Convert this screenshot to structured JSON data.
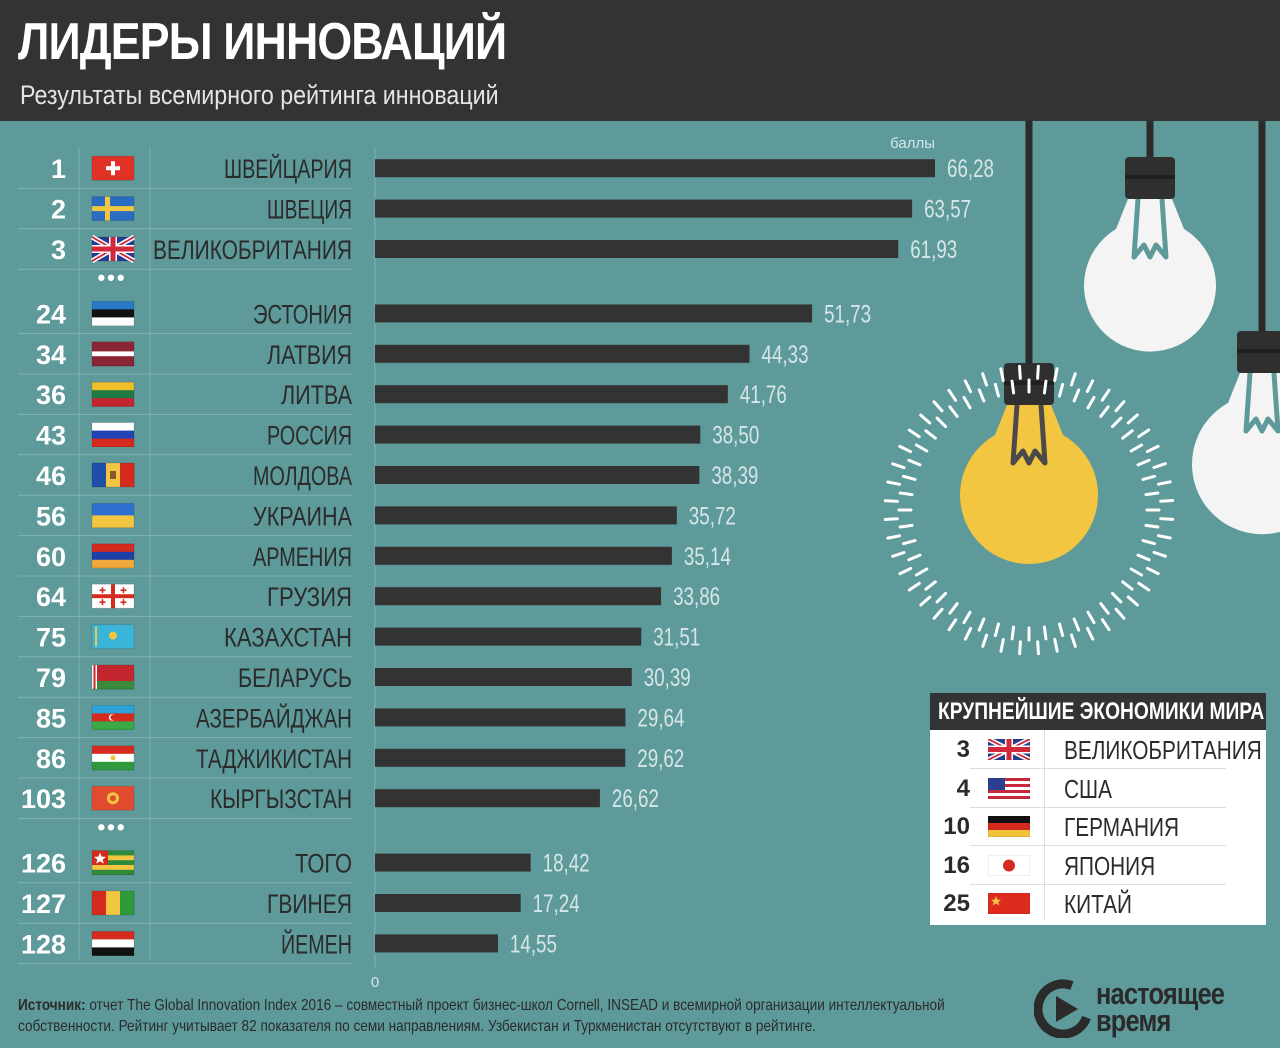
{
  "header": {
    "title": "ЛИДЕРЫ ИННОВАЦИЙ",
    "subtitle": "Результаты всемирного рейтинга инноваций"
  },
  "colors": {
    "background": "#5e9a9a",
    "header": "#333333",
    "bar": "#333333",
    "value_text": "#d6e6e6",
    "bulb_lit": "#f2c641",
    "bulb_off": "#f4f4f4"
  },
  "chart_data": {
    "type": "bar",
    "orientation": "horizontal",
    "unit_label": "баллы",
    "axis_zero_label": "0",
    "xlim": [
      0,
      66.28
    ],
    "gap_marker": "•••",
    "rows": [
      {
        "rank": "1",
        "country": "ШВЕЙЦАРИЯ",
        "value": 66.28,
        "label": "66,28",
        "flag": "flag-switzerland"
      },
      {
        "rank": "2",
        "country": "ШВЕЦИЯ",
        "value": 63.57,
        "label": "63,57",
        "flag": "flag-sweden"
      },
      {
        "rank": "3",
        "country": "ВЕЛИКОБРИТАНИЯ",
        "value": 61.93,
        "label": "61,93",
        "flag": "flag-uk"
      },
      {
        "gap": true
      },
      {
        "rank": "24",
        "country": "ЭСТОНИЯ",
        "value": 51.73,
        "label": "51,73",
        "flag": "flag-estonia"
      },
      {
        "rank": "34",
        "country": "ЛАТВИЯ",
        "value": 44.33,
        "label": "44,33",
        "flag": "flag-latvia"
      },
      {
        "rank": "36",
        "country": "ЛИТВА",
        "value": 41.76,
        "label": "41,76",
        "flag": "flag-lithuania"
      },
      {
        "rank": "43",
        "country": "РОССИЯ",
        "value": 38.5,
        "label": "38,50",
        "flag": "flag-russia"
      },
      {
        "rank": "46",
        "country": "МОЛДОВА",
        "value": 38.39,
        "label": "38,39",
        "flag": "flag-moldova"
      },
      {
        "rank": "56",
        "country": "УКРАИНА",
        "value": 35.72,
        "label": "35,72",
        "flag": "flag-ukraine"
      },
      {
        "rank": "60",
        "country": "АРМЕНИЯ",
        "value": 35.14,
        "label": "35,14",
        "flag": "flag-armenia"
      },
      {
        "rank": "64",
        "country": "ГРУЗИЯ",
        "value": 33.86,
        "label": "33,86",
        "flag": "flag-georgia"
      },
      {
        "rank": "75",
        "country": "КАЗАХСТАН",
        "value": 31.51,
        "label": "31,51",
        "flag": "flag-kazakhstan"
      },
      {
        "rank": "79",
        "country": "БЕЛАРУСЬ",
        "value": 30.39,
        "label": "30,39",
        "flag": "flag-belarus"
      },
      {
        "rank": "85",
        "country": "АЗЕРБАЙДЖАН",
        "value": 29.64,
        "label": "29,64",
        "flag": "flag-azerbaijan"
      },
      {
        "rank": "86",
        "country": "ТАДЖИКИСТАН",
        "value": 29.62,
        "label": "29,62",
        "flag": "flag-tajikistan"
      },
      {
        "rank": "103",
        "country": "КЫРГЫЗСТАН",
        "value": 26.62,
        "label": "26,62",
        "flag": "flag-kyrgyzstan"
      },
      {
        "gap": true
      },
      {
        "rank": "126",
        "country": "ТОГО",
        "value": 18.42,
        "label": "18,42",
        "flag": "flag-togo"
      },
      {
        "rank": "127",
        "country": "ГВИНЕЯ",
        "value": 17.24,
        "label": "17,24",
        "flag": "flag-guinea"
      },
      {
        "rank": "128",
        "country": "ЙЕМЕН",
        "value": 14.55,
        "label": "14,55",
        "flag": "flag-yemen"
      }
    ]
  },
  "economies": {
    "title": "КРУПНЕЙШИЕ ЭКОНОМИКИ МИРА",
    "rows": [
      {
        "rank": "3",
        "country": "ВЕЛИКОБРИТАНИЯ",
        "flag": "flag-uk"
      },
      {
        "rank": "4",
        "country": "США",
        "flag": "flag-usa"
      },
      {
        "rank": "10",
        "country": "ГЕРМАНИЯ",
        "flag": "flag-germany"
      },
      {
        "rank": "16",
        "country": "ЯПОНИЯ",
        "flag": "flag-japan"
      },
      {
        "rank": "25",
        "country": "КИТАЙ",
        "flag": "flag-china"
      }
    ]
  },
  "footer": {
    "source_label": "Источник:",
    "source_text": " отчет The Global Innovation Index 2016 – совместный проект бизнес-школ Cornell, INSEAD и всемирной организации интеллектуальной собственности. Рейтинг учитывает 82 показателя по семи направлениям. Узбекистан и Туркменистан отсутствуют в рейтинге.",
    "logo_line1": "настоящее",
    "logo_line2": "время",
    "logo_icon": "play-arrow-logo-icon"
  }
}
